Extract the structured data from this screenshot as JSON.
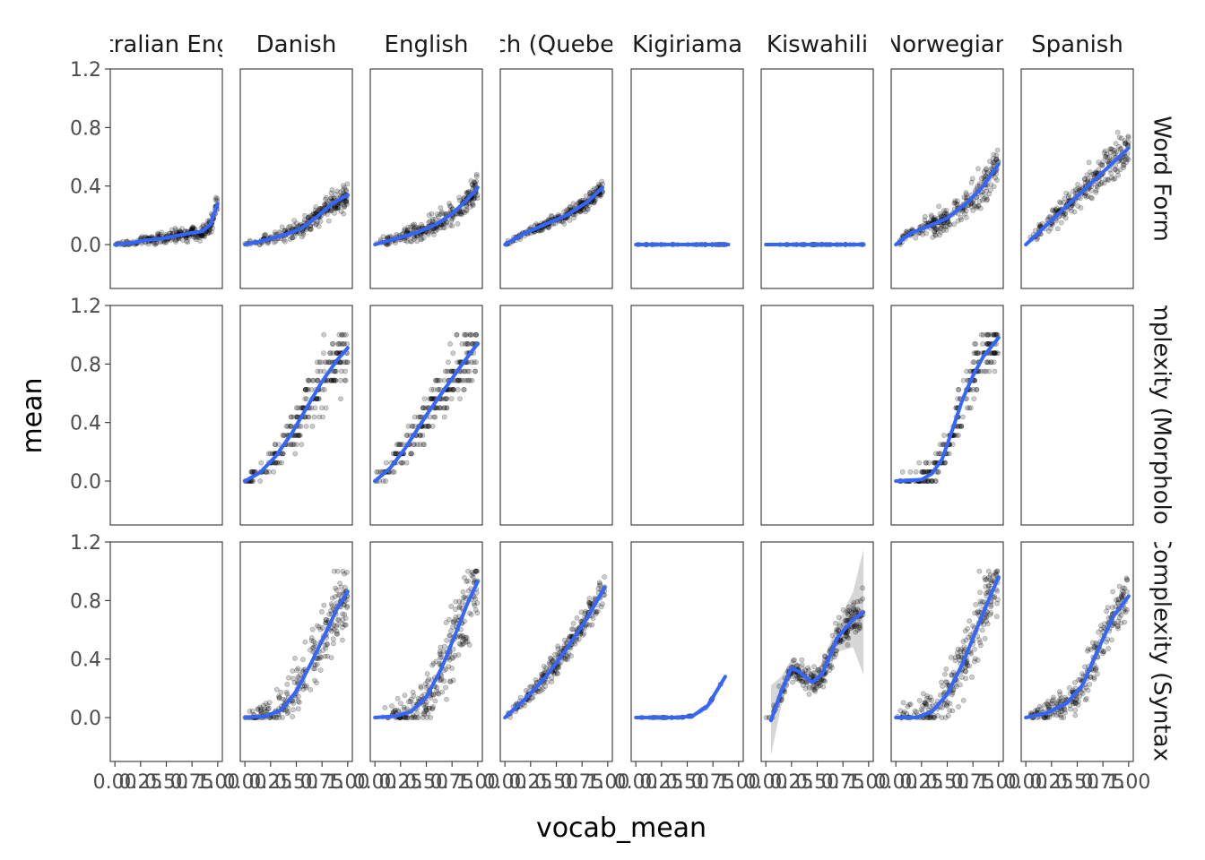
{
  "chart_data": {
    "type": "scatter",
    "facet_type": "facet_grid",
    "xlabel": "vocab_mean",
    "ylabel": "mean",
    "ylim": [
      -0.3,
      1.2
    ],
    "xlim": [
      0,
      1
    ],
    "y_ticks": [
      "0.0",
      "0.4",
      "0.8",
      "1.2"
    ],
    "y_tick_values": [
      0.0,
      0.4,
      0.8,
      1.2
    ],
    "x_tick_labels": [
      [
        "0.00",
        "0.25",
        "0.50",
        "0.75",
        "1.00"
      ],
      [
        "0.00",
        "0.25",
        "0.50",
        "0.75",
        "1.00"
      ],
      [
        "0.00",
        "0.25",
        "0.50",
        "0.75",
        "1.00"
      ],
      [
        "0.00",
        "0.25",
        "0.50",
        "0.75",
        "1.00"
      ],
      [
        "0.00",
        "0.25",
        "0.50",
        "0.75",
        "1.00"
      ],
      [
        "0.00",
        "0.25",
        "0.50",
        "0.75",
        "1.00"
      ],
      [
        "0.00",
        "0.25",
        "0.50",
        "0.75",
        "1.00"
      ],
      [
        "0.00",
        "0.25",
        "0.50",
        "0.75",
        "1.00"
      ]
    ],
    "x_tick_values": [
      0,
      0.25,
      0.5,
      0.75,
      1.0
    ],
    "columns": [
      "Australian English",
      "Danish",
      "English",
      "French (Quebecois)",
      "Kigiriama",
      "Kiswahili",
      "Norwegian",
      "Spanish"
    ],
    "rows": [
      "Word Form",
      "Complexity (Morphology)",
      "Complexity (Syntax)"
    ],
    "point_color": "#000000",
    "smooth_color": "#3366FF",
    "band_color": "#999999",
    "panels": [
      {
        "row": 0,
        "col": 0,
        "points": true,
        "spread": 0.05,
        "max_x": 1.0,
        "smooth": [
          [
            0,
            0.0
          ],
          [
            0.15,
            0.01
          ],
          [
            0.3,
            0.03
          ],
          [
            0.45,
            0.04
          ],
          [
            0.6,
            0.06
          ],
          [
            0.75,
            0.08
          ],
          [
            0.85,
            0.09
          ],
          [
            0.93,
            0.14
          ],
          [
            1.0,
            0.28
          ]
        ]
      },
      {
        "row": 0,
        "col": 1,
        "points": true,
        "spread": 0.07,
        "max_x": 1.0,
        "smooth": [
          [
            0,
            0.0
          ],
          [
            0.2,
            0.03
          ],
          [
            0.4,
            0.07
          ],
          [
            0.55,
            0.11
          ],
          [
            0.7,
            0.19
          ],
          [
            0.85,
            0.28
          ],
          [
            1.0,
            0.34
          ]
        ]
      },
      {
        "row": 0,
        "col": 2,
        "points": true,
        "spread": 0.08,
        "max_x": 1.0,
        "smooth": [
          [
            0,
            0.0
          ],
          [
            0.2,
            0.04
          ],
          [
            0.4,
            0.08
          ],
          [
            0.6,
            0.14
          ],
          [
            0.75,
            0.21
          ],
          [
            0.9,
            0.31
          ],
          [
            1.0,
            0.39
          ]
        ]
      },
      {
        "row": 0,
        "col": 3,
        "points": true,
        "spread": 0.05,
        "max_x": 0.95,
        "smooth": [
          [
            0,
            0.0
          ],
          [
            0.2,
            0.08
          ],
          [
            0.4,
            0.14
          ],
          [
            0.6,
            0.2
          ],
          [
            0.8,
            0.29
          ],
          [
            0.95,
            0.39
          ]
        ]
      },
      {
        "row": 0,
        "col": 4,
        "points": true,
        "spread": 0.002,
        "max_x": 0.9,
        "smooth": [
          [
            0,
            0.0
          ],
          [
            0.9,
            0.0
          ]
        ]
      },
      {
        "row": 0,
        "col": 5,
        "points": true,
        "spread": 0.002,
        "max_x": 0.95,
        "smooth": [
          [
            0,
            0.0
          ],
          [
            0.95,
            0.0
          ]
        ]
      },
      {
        "row": 0,
        "col": 6,
        "points": true,
        "spread": 0.1,
        "max_x": 1.0,
        "smooth": [
          [
            0,
            0.0
          ],
          [
            0.15,
            0.08
          ],
          [
            0.3,
            0.12
          ],
          [
            0.5,
            0.18
          ],
          [
            0.7,
            0.29
          ],
          [
            0.85,
            0.4
          ],
          [
            1.0,
            0.55
          ]
        ]
      },
      {
        "row": 0,
        "col": 7,
        "points": true,
        "spread": 0.12,
        "max_x": 1.0,
        "smooth": [
          [
            0,
            0.0
          ],
          [
            0.5,
            0.33
          ],
          [
            1.0,
            0.66
          ]
        ]
      },
      {
        "row": 1,
        "col": 0,
        "points": false
      },
      {
        "row": 1,
        "col": 1,
        "points": true,
        "spread": 0.18,
        "max_x": 1.0,
        "discrete": 0.0625,
        "smooth": [
          [
            0,
            0.0
          ],
          [
            0.15,
            0.06
          ],
          [
            0.3,
            0.17
          ],
          [
            0.45,
            0.32
          ],
          [
            0.6,
            0.5
          ],
          [
            0.75,
            0.68
          ],
          [
            0.9,
            0.83
          ],
          [
            1.0,
            0.91
          ]
        ]
      },
      {
        "row": 1,
        "col": 2,
        "points": true,
        "spread": 0.18,
        "max_x": 1.0,
        "discrete": 0.0625,
        "smooth": [
          [
            0,
            0.0
          ],
          [
            0.15,
            0.09
          ],
          [
            0.3,
            0.23
          ],
          [
            0.5,
            0.45
          ],
          [
            0.7,
            0.65
          ],
          [
            0.85,
            0.8
          ],
          [
            1.0,
            0.94
          ]
        ]
      },
      {
        "row": 1,
        "col": 3,
        "points": false
      },
      {
        "row": 1,
        "col": 4,
        "points": false
      },
      {
        "row": 1,
        "col": 5,
        "points": false
      },
      {
        "row": 1,
        "col": 6,
        "points": true,
        "spread": 0.18,
        "max_x": 1.0,
        "discrete": 0.0625,
        "smooth": [
          [
            0,
            0.0
          ],
          [
            0.25,
            0.01
          ],
          [
            0.35,
            0.05
          ],
          [
            0.45,
            0.15
          ],
          [
            0.55,
            0.35
          ],
          [
            0.65,
            0.56
          ],
          [
            0.75,
            0.72
          ],
          [
            0.85,
            0.85
          ],
          [
            1.0,
            0.98
          ]
        ]
      },
      {
        "row": 1,
        "col": 7,
        "points": false
      },
      {
        "row": 2,
        "col": 0,
        "points": false
      },
      {
        "row": 2,
        "col": 1,
        "points": true,
        "spread": 0.2,
        "max_x": 1.0,
        "smooth": [
          [
            0,
            0.0
          ],
          [
            0.2,
            0.01
          ],
          [
            0.35,
            0.05
          ],
          [
            0.5,
            0.18
          ],
          [
            0.65,
            0.38
          ],
          [
            0.8,
            0.6
          ],
          [
            0.9,
            0.75
          ],
          [
            1.0,
            0.86
          ]
        ]
      },
      {
        "row": 2,
        "col": 2,
        "points": true,
        "spread": 0.22,
        "max_x": 1.0,
        "smooth": [
          [
            0,
            0.0
          ],
          [
            0.2,
            0.01
          ],
          [
            0.35,
            0.04
          ],
          [
            0.5,
            0.14
          ],
          [
            0.65,
            0.34
          ],
          [
            0.8,
            0.6
          ],
          [
            0.9,
            0.78
          ],
          [
            1.0,
            0.93
          ]
        ]
      },
      {
        "row": 2,
        "col": 3,
        "points": true,
        "spread": 0.1,
        "max_x": 0.97,
        "smooth": [
          [
            0,
            0.0
          ],
          [
            0.2,
            0.13
          ],
          [
            0.4,
            0.28
          ],
          [
            0.6,
            0.47
          ],
          [
            0.8,
            0.68
          ],
          [
            0.97,
            0.89
          ]
        ]
      },
      {
        "row": 2,
        "col": 4,
        "points": true,
        "spread": 0.005,
        "max_x": 0.87,
        "smooth": [
          [
            0,
            0.0
          ],
          [
            0.4,
            0.0
          ],
          [
            0.55,
            0.01
          ],
          [
            0.7,
            0.08
          ],
          [
            0.87,
            0.28
          ]
        ]
      },
      {
        "row": 2,
        "col": 5,
        "points": true,
        "spread": 0.12,
        "max_x": 0.95,
        "smooth": [
          [
            0.05,
            -0.02
          ],
          [
            0.15,
            0.18
          ],
          [
            0.25,
            0.34
          ],
          [
            0.33,
            0.31
          ],
          [
            0.45,
            0.24
          ],
          [
            0.55,
            0.3
          ],
          [
            0.7,
            0.55
          ],
          [
            0.85,
            0.67
          ],
          [
            0.95,
            0.72
          ]
        ],
        "band_upper": [
          [
            0.05,
            0.22
          ],
          [
            0.15,
            0.28
          ],
          [
            0.25,
            0.4
          ],
          [
            0.33,
            0.37
          ],
          [
            0.45,
            0.31
          ],
          [
            0.55,
            0.37
          ],
          [
            0.7,
            0.65
          ],
          [
            0.85,
            0.86
          ],
          [
            0.95,
            1.15
          ]
        ],
        "band_lower": [
          [
            0.05,
            -0.26
          ],
          [
            0.15,
            0.08
          ],
          [
            0.25,
            0.28
          ],
          [
            0.33,
            0.25
          ],
          [
            0.45,
            0.17
          ],
          [
            0.55,
            0.23
          ],
          [
            0.7,
            0.45
          ],
          [
            0.85,
            0.48
          ],
          [
            0.95,
            0.29
          ]
        ]
      },
      {
        "row": 2,
        "col": 6,
        "points": true,
        "spread": 0.22,
        "max_x": 1.0,
        "smooth": [
          [
            0,
            0.0
          ],
          [
            0.2,
            0.0
          ],
          [
            0.35,
            0.04
          ],
          [
            0.5,
            0.16
          ],
          [
            0.65,
            0.37
          ],
          [
            0.8,
            0.63
          ],
          [
            0.9,
            0.8
          ],
          [
            1.0,
            0.96
          ]
        ]
      },
      {
        "row": 2,
        "col": 7,
        "points": true,
        "spread": 0.15,
        "max_x": 1.0,
        "smooth": [
          [
            0,
            0.0
          ],
          [
            0.2,
            0.03
          ],
          [
            0.4,
            0.1
          ],
          [
            0.55,
            0.22
          ],
          [
            0.7,
            0.46
          ],
          [
            0.85,
            0.69
          ],
          [
            1.0,
            0.83
          ]
        ]
      }
    ]
  }
}
